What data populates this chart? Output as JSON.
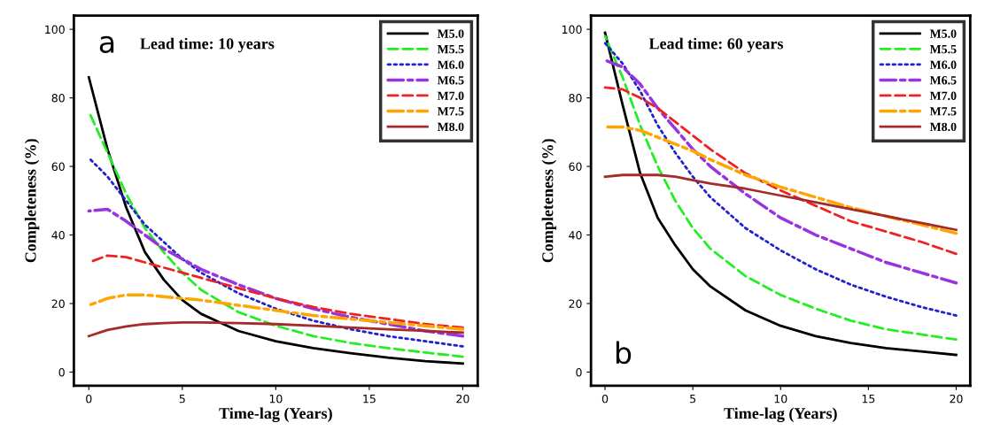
{
  "chart_data": [
    {
      "type": "line",
      "title": "Lead time: 10 years",
      "xlabel": "Time-lag (Years)",
      "ylabel": "Completeness (%)",
      "annotations": [
        "a"
      ],
      "xlim": [
        -0.8,
        20.8
      ],
      "ylim": [
        -4,
        104
      ],
      "xticks": [
        0,
        5,
        10,
        15,
        20
      ],
      "yticks": [
        0,
        20,
        40,
        60,
        80,
        100
      ],
      "grid": false,
      "legend": "top right",
      "x": [
        0,
        1,
        2,
        3,
        4,
        5,
        6,
        8,
        10,
        12,
        14,
        16,
        18,
        20
      ],
      "series": [
        {
          "name": "M5.0",
          "color": "#000000",
          "line_style": "solid",
          "values": [
            86,
            65,
            48,
            35,
            27,
            21,
            17,
            12,
            9,
            7,
            5.5,
            4.2,
            3.2,
            2.5
          ]
        },
        {
          "name": "M5.5",
          "color": "#22ee22",
          "line_style": "dashed",
          "values": [
            76,
            64,
            52,
            42,
            35,
            29,
            24,
            17.5,
            13.5,
            10.5,
            8.5,
            7,
            5.7,
            4.5
          ]
        },
        {
          "name": "M6.0",
          "color": "#2222cc",
          "line_style": "dotted",
          "values": [
            62.5,
            57,
            50,
            43,
            38,
            33,
            29,
            23,
            18.5,
            15,
            12.5,
            10.5,
            9,
            7.5
          ]
        },
        {
          "name": "M6.5",
          "color": "#9933dd",
          "line_style": "dashdot",
          "values": [
            47,
            47.5,
            44,
            40,
            36,
            33,
            30,
            25.5,
            21.5,
            18.5,
            16,
            14,
            12,
            10.5
          ]
        },
        {
          "name": "M7.0",
          "color": "#ee2222",
          "line_style": "dashed",
          "values": [
            32,
            34,
            33.5,
            32,
            30.5,
            29,
            27.5,
            24.5,
            21.5,
            19,
            17,
            15.5,
            14,
            13
          ]
        },
        {
          "name": "M7.5",
          "color": "#ffa500",
          "line_style": "dashdot",
          "values": [
            19.5,
            21.5,
            22.5,
            22.5,
            22,
            21.5,
            21,
            19.5,
            18,
            16.5,
            15.5,
            14.5,
            13.5,
            12.5
          ]
        },
        {
          "name": "M8.0",
          "color": "#a52a2a",
          "line_style": "solid",
          "values": [
            10.5,
            12.3,
            13.3,
            14,
            14.3,
            14.5,
            14.5,
            14.3,
            14,
            13.5,
            13,
            12.5,
            12,
            11.5
          ]
        }
      ]
    },
    {
      "type": "line",
      "title": "Lead time: 60 years",
      "xlabel": "Time-lag (Years)",
      "ylabel": "Completeness (%)",
      "annotations": [
        "b"
      ],
      "xlim": [
        -0.8,
        20.8
      ],
      "ylim": [
        -4,
        104
      ],
      "xticks": [
        0,
        5,
        10,
        15,
        20
      ],
      "yticks": [
        0,
        20,
        40,
        60,
        80,
        100
      ],
      "grid": false,
      "legend": "top right",
      "x": [
        0,
        1,
        2,
        3,
        4,
        5,
        6,
        8,
        10,
        12,
        14,
        16,
        18,
        20
      ],
      "series": [
        {
          "name": "M5.0",
          "color": "#000000",
          "line_style": "solid",
          "values": [
            99,
            78,
            58,
            45,
            37,
            30,
            25,
            18,
            13.5,
            10.5,
            8.5,
            7,
            6,
            5
          ]
        },
        {
          "name": "M5.5",
          "color": "#22ee22",
          "line_style": "dashed",
          "values": [
            98,
            86,
            72,
            60,
            50,
            42,
            36,
            28,
            22.5,
            18.5,
            15,
            12.5,
            11,
            9.5
          ]
        },
        {
          "name": "M6.0",
          "color": "#2222cc",
          "line_style": "dotted",
          "values": [
            96,
            90,
            82,
            72,
            64,
            57,
            51,
            42,
            35.5,
            30,
            25.5,
            22,
            19,
            16.5
          ]
        },
        {
          "name": "M6.5",
          "color": "#9933dd",
          "line_style": "dashdot",
          "values": [
            91,
            89,
            84,
            77,
            71,
            65,
            60,
            52,
            45,
            40,
            36,
            32,
            29,
            26
          ]
        },
        {
          "name": "M7.0",
          "color": "#ee2222",
          "line_style": "dashed",
          "values": [
            83,
            82.5,
            80,
            77,
            73,
            69,
            65,
            58,
            53,
            48.5,
            44,
            41,
            38,
            34.5
          ]
        },
        {
          "name": "M7.5",
          "color": "#ffa500",
          "line_style": "dashdot",
          "values": [
            71.5,
            71.5,
            70.5,
            68.5,
            66.5,
            64.5,
            62,
            57.5,
            54,
            51,
            48,
            45.5,
            43,
            40.5
          ]
        },
        {
          "name": "M8.0",
          "color": "#a52a2a",
          "line_style": "solid",
          "values": [
            57,
            57.5,
            57.5,
            57.5,
            57,
            56,
            55,
            53.5,
            51.5,
            49.5,
            47.5,
            45.5,
            43.5,
            41.5
          ]
        }
      ]
    }
  ]
}
